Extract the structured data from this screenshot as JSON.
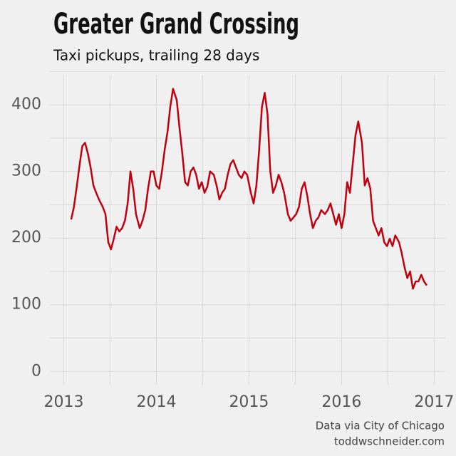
{
  "chart_data": {
    "type": "line",
    "title": "Greater Grand Crossing",
    "subtitle": "Taxi pickups, trailing 28 days",
    "source": [
      "Data via City of Chicago",
      "toddwschneider.com"
    ],
    "xlim": [
      2012.85,
      2017.12
    ],
    "ylim": [
      -20,
      445
    ],
    "xticks": [
      2013,
      2014,
      2015,
      2016,
      2017
    ],
    "yticks": [
      0,
      100,
      200,
      300,
      400
    ],
    "grid": true,
    "x": [
      2013.08,
      2013.11,
      2013.14,
      2013.17,
      2013.2,
      2013.23,
      2013.26,
      2013.29,
      2013.32,
      2013.35,
      2013.38,
      2013.42,
      2013.45,
      2013.48,
      2013.51,
      2013.54,
      2013.57,
      2013.6,
      2013.63,
      2013.66,
      2013.69,
      2013.72,
      2013.75,
      2013.78,
      2013.82,
      2013.85,
      2013.88,
      2013.91,
      2013.94,
      2013.97,
      2014.0,
      2014.03,
      2014.06,
      2014.09,
      2014.12,
      2014.15,
      2014.18,
      2014.22,
      2014.25,
      2014.28,
      2014.31,
      2014.34,
      2014.37,
      2014.4,
      2014.43,
      2014.46,
      2014.49,
      2014.52,
      2014.55,
      2014.58,
      2014.62,
      2014.65,
      2014.68,
      2014.71,
      2014.74,
      2014.77,
      2014.8,
      2014.83,
      2014.86,
      2014.89,
      2014.92,
      2014.95,
      2014.98,
      2015.02,
      2015.05,
      2015.08,
      2015.11,
      2015.14,
      2015.17,
      2015.2,
      2015.23,
      2015.26,
      2015.29,
      2015.32,
      2015.35,
      2015.38,
      2015.42,
      2015.45,
      2015.48,
      2015.51,
      2015.54,
      2015.57,
      2015.6,
      2015.63,
      2015.66,
      2015.69,
      2015.72,
      2015.75,
      2015.78,
      2015.82,
      2015.85,
      2015.88,
      2015.91,
      2015.94,
      2015.97,
      2016.0,
      2016.03,
      2016.06,
      2016.09,
      2016.12,
      2016.15,
      2016.18,
      2016.22,
      2016.25,
      2016.28,
      2016.31,
      2016.34,
      2016.37,
      2016.4,
      2016.43,
      2016.46,
      2016.49,
      2016.52,
      2016.55,
      2016.58,
      2016.62,
      2016.65,
      2016.68,
      2016.71,
      2016.74,
      2016.77,
      2016.8,
      2016.83,
      2016.86,
      2016.89,
      2016.92
    ],
    "series": [
      {
        "color": "#c0000f",
        "values": [
          228,
          247,
          277,
          309,
          338,
          343,
          327,
          306,
          279,
          268,
          258,
          247,
          236,
          194,
          183,
          199,
          217,
          210,
          215,
          226,
          252,
          300,
          274,
          236,
          215,
          226,
          242,
          274,
          300,
          300,
          279,
          274,
          300,
          333,
          359,
          397,
          424,
          407,
          365,
          327,
          284,
          279,
          300,
          306,
          295,
          274,
          284,
          268,
          277,
          300,
          295,
          279,
          258,
          268,
          274,
          295,
          311,
          317,
          306,
          295,
          290,
          300,
          295,
          268,
          252,
          279,
          333,
          397,
          418,
          386,
          300,
          268,
          279,
          295,
          284,
          268,
          236,
          226,
          231,
          236,
          247,
          274,
          284,
          263,
          236,
          215,
          226,
          231,
          242,
          236,
          242,
          252,
          236,
          220,
          236,
          215,
          236,
          284,
          268,
          311,
          354,
          375,
          343,
          279,
          290,
          274,
          226,
          215,
          204,
          215,
          194,
          188,
          199,
          188,
          204,
          194,
          177,
          156,
          140,
          150,
          124,
          135,
          135,
          145,
          135,
          129
        ]
      }
    ]
  }
}
